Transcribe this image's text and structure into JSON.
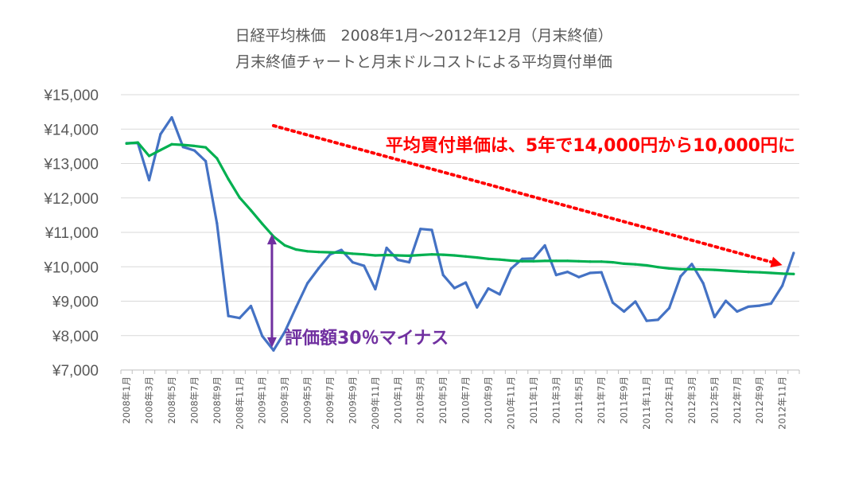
{
  "chart_data": {
    "type": "line",
    "title": "日経平均株価　2008年1月～2012年12月（月末終値）",
    "subtitle": "月末終値チャートと月末ドルコストによる平均買付単価",
    "ylim": [
      7000,
      15000
    ],
    "y_ticks": [
      "¥7,000",
      "¥8,000",
      "¥9,000",
      "¥10,000",
      "¥11,000",
      "¥12,000",
      "¥13,000",
      "¥14,000",
      "¥15,000"
    ],
    "y_tick_values": [
      7000,
      8000,
      9000,
      10000,
      11000,
      12000,
      13000,
      14000,
      15000
    ],
    "grid": true,
    "legend": "none",
    "categories": [
      "2008年1月",
      "2008年2月",
      "2008年3月",
      "2008年4月",
      "2008年5月",
      "2008年6月",
      "2008年7月",
      "2008年8月",
      "2008年9月",
      "2008年10月",
      "2008年11月",
      "2008年12月",
      "2009年1月",
      "2009年2月",
      "2009年3月",
      "2009年4月",
      "2009年5月",
      "2009年6月",
      "2009年7月",
      "2009年8月",
      "2009年9月",
      "2009年10月",
      "2009年11月",
      "2009年12月",
      "2010年1月",
      "2010年2月",
      "2010年3月",
      "2010年4月",
      "2010年5月",
      "2010年6月",
      "2010年7月",
      "2010年8月",
      "2010年9月",
      "2010年10月",
      "2010年11月",
      "2010年12月",
      "2011年1月",
      "2011年2月",
      "2011年3月",
      "2011年4月",
      "2011年5月",
      "2011年6月",
      "2011年7月",
      "2011年8月",
      "2011年9月",
      "2011年10月",
      "2011年11月",
      "2011年12月",
      "2012年1月",
      "2012年2月",
      "2012年3月",
      "2012年4月",
      "2012年5月",
      "2012年6月",
      "2012年7月",
      "2012年8月",
      "2012年9月",
      "2012年10月",
      "2012年11月",
      "2012年12月"
    ],
    "x_tick_labels": [
      "2008年1月",
      "2008年3月",
      "2008年5月",
      "2008年7月",
      "2008年9月",
      "2008年11月",
      "2009年1月",
      "2009年3月",
      "2009年5月",
      "2009年7月",
      "2009年9月",
      "2009年11月",
      "2010年1月",
      "2010年3月",
      "2010年5月",
      "2010年7月",
      "2010年9月",
      "2010年11月",
      "2011年1月",
      "2011年3月",
      "2011年5月",
      "2011年7月",
      "2011年9月",
      "2011年11月",
      "2012年1月",
      "2012年3月",
      "2012年5月",
      "2012年7月",
      "2012年9月",
      "2012年11月"
    ],
    "series": [
      {
        "color": "#4472c4",
        "values": [
          13590,
          13600,
          12520,
          13850,
          14340,
          13480,
          13380,
          13070,
          11260,
          8570,
          8510,
          8860,
          7990,
          7570,
          8110,
          8830,
          9520,
          9960,
          10360,
          10490,
          10130,
          10030,
          9350,
          10550,
          10200,
          10130,
          11100,
          11070,
          9760,
          9380,
          9540,
          8820,
          9370,
          9200,
          9940,
          10230,
          10240,
          10620,
          9760,
          9850,
          9700,
          9820,
          9840,
          8960,
          8700,
          8990,
          8430,
          8460,
          8800,
          9720,
          10080,
          9520,
          8540,
          9010,
          8700,
          8840,
          8870,
          8930,
          9450,
          10400
        ]
      },
      {
        "color": "#00b050",
        "values": [
          13580,
          13610,
          13220,
          13390,
          13560,
          13540,
          13510,
          13470,
          13150,
          12550,
          12010,
          11640,
          11250,
          10880,
          10620,
          10500,
          10450,
          10430,
          10420,
          10410,
          10380,
          10360,
          10330,
          10340,
          10330,
          10320,
          10340,
          10360,
          10350,
          10330,
          10300,
          10270,
          10230,
          10210,
          10180,
          10160,
          10160,
          10170,
          10170,
          10170,
          10160,
          10150,
          10150,
          10130,
          10090,
          10070,
          10040,
          9990,
          9950,
          9930,
          9930,
          9920,
          9910,
          9890,
          9870,
          9850,
          9840,
          9820,
          9800,
          9790
        ]
      }
    ],
    "annotations": {
      "trend_text": "平均買付単価は、5年で14,000円から10,000円に",
      "trend_arrow": {
        "from": {
          "x": "2009年2月",
          "y": 14100
        },
        "to": {
          "x": "2012年11月",
          "y": 10050
        },
        "color": "#ff0000"
      },
      "drawdown_text": "評価額30％マイナス",
      "drawdown_arrow": {
        "x": "2009年2月",
        "from": 10950,
        "to": 7650,
        "color": "#7030a0"
      }
    }
  }
}
